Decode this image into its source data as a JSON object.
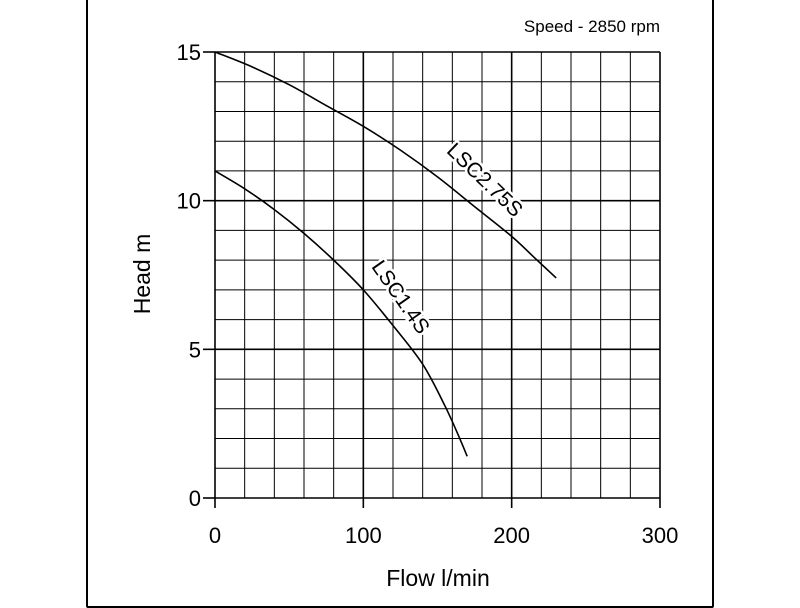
{
  "chart_data": {
    "type": "line",
    "annotation": "Speed - 2850 rpm",
    "xlabel": "Flow l/min",
    "ylabel": "Head m",
    "xlim": [
      0,
      300
    ],
    "ylim": [
      0,
      15
    ],
    "x_ticks": [
      0,
      100,
      200,
      300
    ],
    "y_ticks": [
      0,
      5,
      10,
      15
    ],
    "x_minor_step": 20,
    "y_minor_step": 1,
    "grid": true,
    "series": [
      {
        "name": "LSC2.75S",
        "color": "#000000",
        "points": [
          [
            0,
            15
          ],
          [
            25,
            14.5
          ],
          [
            50,
            13.9
          ],
          [
            75,
            13.2
          ],
          [
            100,
            12.5
          ],
          [
            125,
            11.7
          ],
          [
            150,
            10.8
          ],
          [
            175,
            9.8
          ],
          [
            200,
            8.8
          ],
          [
            215,
            8.1
          ],
          [
            230,
            7.4
          ]
        ]
      },
      {
        "name": "LSC1.4S",
        "color": "#000000",
        "points": [
          [
            0,
            11
          ],
          [
            20,
            10.4
          ],
          [
            40,
            9.7
          ],
          [
            60,
            8.9
          ],
          [
            80,
            8.0
          ],
          [
            100,
            7.0
          ],
          [
            120,
            5.8
          ],
          [
            140,
            4.5
          ],
          [
            155,
            3.1
          ],
          [
            165,
            2.0
          ],
          [
            170,
            1.4
          ]
        ]
      }
    ]
  }
}
